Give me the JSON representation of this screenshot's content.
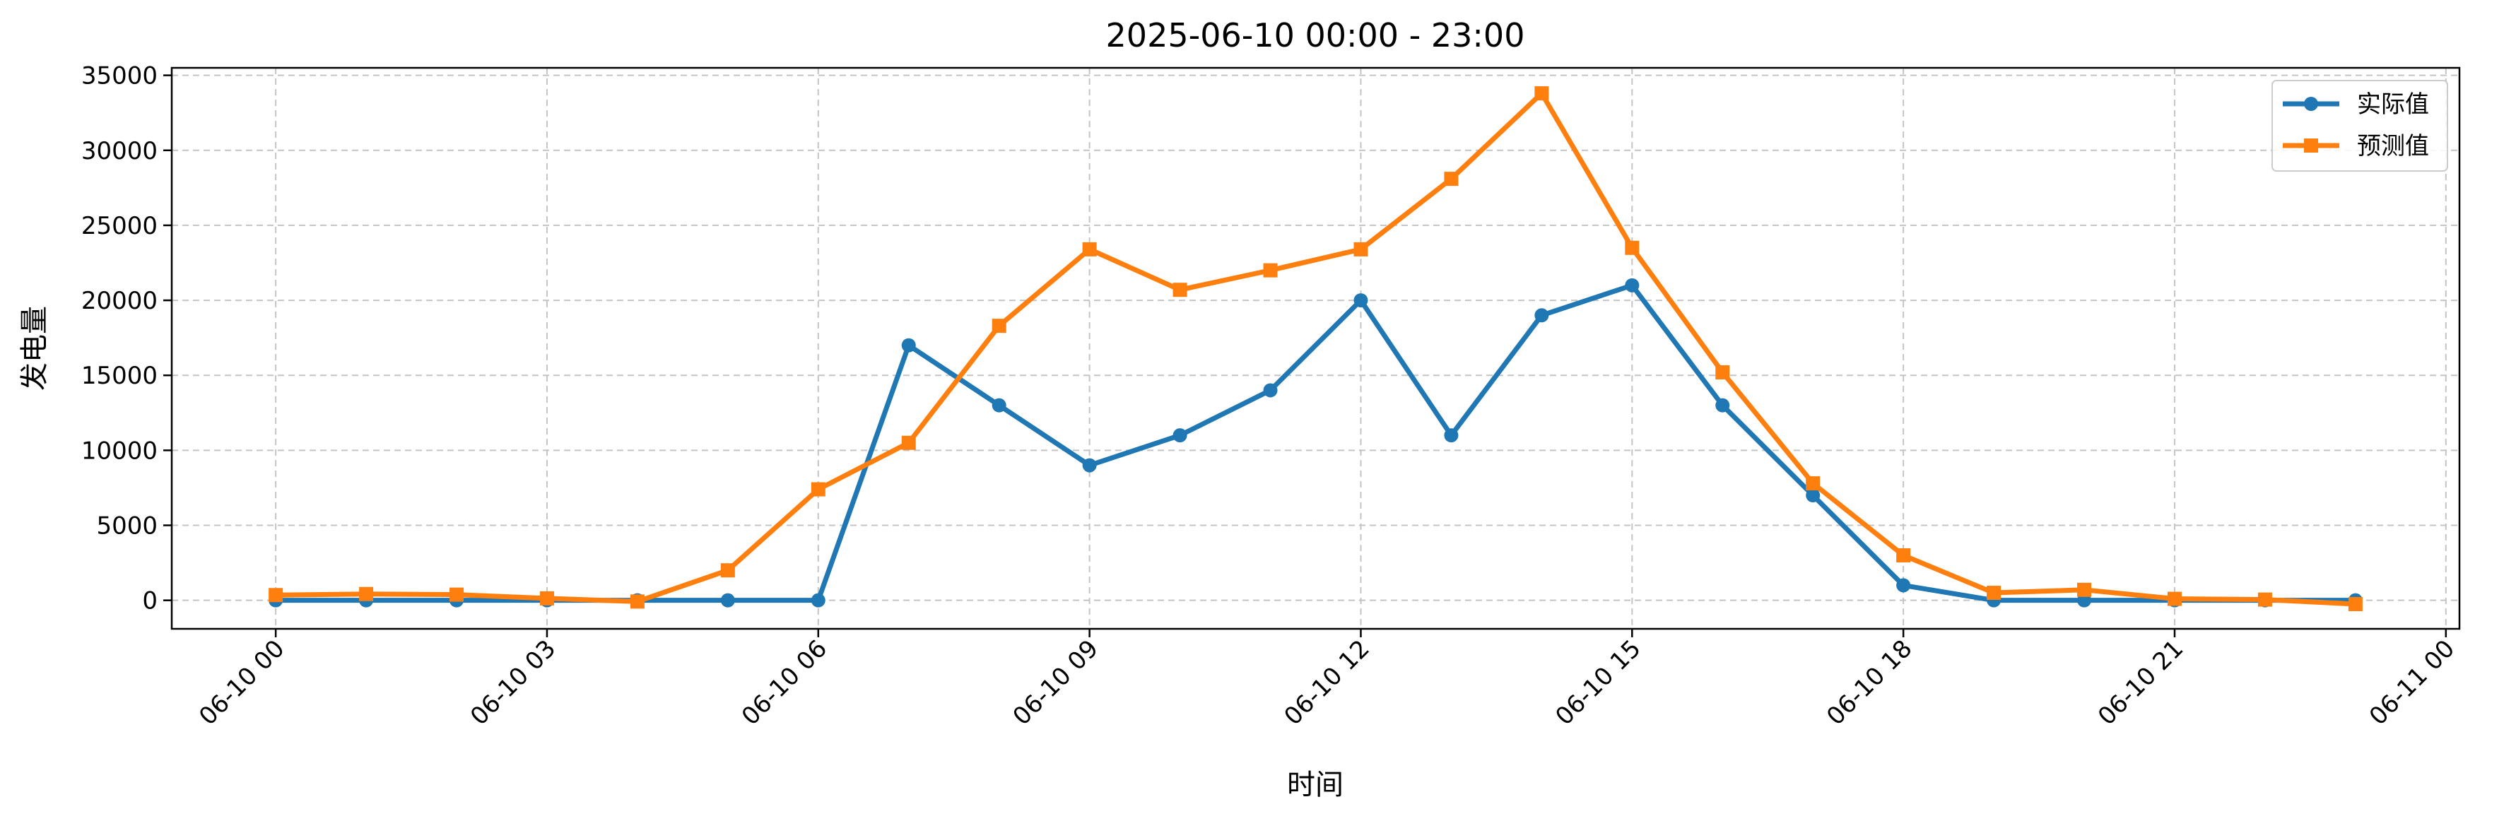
{
  "chart_data": {
    "type": "line",
    "title": "2025-06-10 00:00 - 23:00",
    "xlabel": "时间",
    "ylabel": "发电量",
    "x": [
      "06-10 00",
      "06-10 01",
      "06-10 02",
      "06-10 03",
      "06-10 04",
      "06-10 05",
      "06-10 06",
      "06-10 07",
      "06-10 08",
      "06-10 09",
      "06-10 10",
      "06-10 11",
      "06-10 12",
      "06-10 13",
      "06-10 14",
      "06-10 15",
      "06-10 16",
      "06-10 17",
      "06-10 18",
      "06-10 19",
      "06-10 20",
      "06-10 21",
      "06-10 22",
      "06-10 23"
    ],
    "x_ticks": [
      "06-10 00",
      "06-10 03",
      "06-10 06",
      "06-10 09",
      "06-10 12",
      "06-10 15",
      "06-10 18",
      "06-10 21",
      "06-11 00"
    ],
    "xlim_hours": [
      -1.15,
      24.15
    ],
    "ylim": [
      -1900,
      35500
    ],
    "y_ticks": [
      0,
      5000,
      10000,
      15000,
      20000,
      25000,
      30000,
      35000
    ],
    "grid": true,
    "legend_position": "top-right",
    "series": [
      {
        "name": "实际值",
        "color": "#1f77b4",
        "marker": "circle",
        "values": [
          0,
          0,
          0,
          0,
          0,
          0,
          0,
          17000,
          13000,
          9000,
          11000,
          14000,
          20000,
          11000,
          19000,
          21000,
          13000,
          7000,
          1000,
          0,
          0,
          0,
          0,
          0
        ]
      },
      {
        "name": "预测值",
        "color": "#ff7f0e",
        "marker": "square",
        "values": [
          350,
          420,
          380,
          130,
          -80,
          2000,
          7400,
          10500,
          18300,
          23400,
          20700,
          22000,
          23400,
          28100,
          33800,
          23500,
          15200,
          7800,
          3000,
          500,
          700,
          100,
          50,
          -250
        ]
      }
    ]
  }
}
